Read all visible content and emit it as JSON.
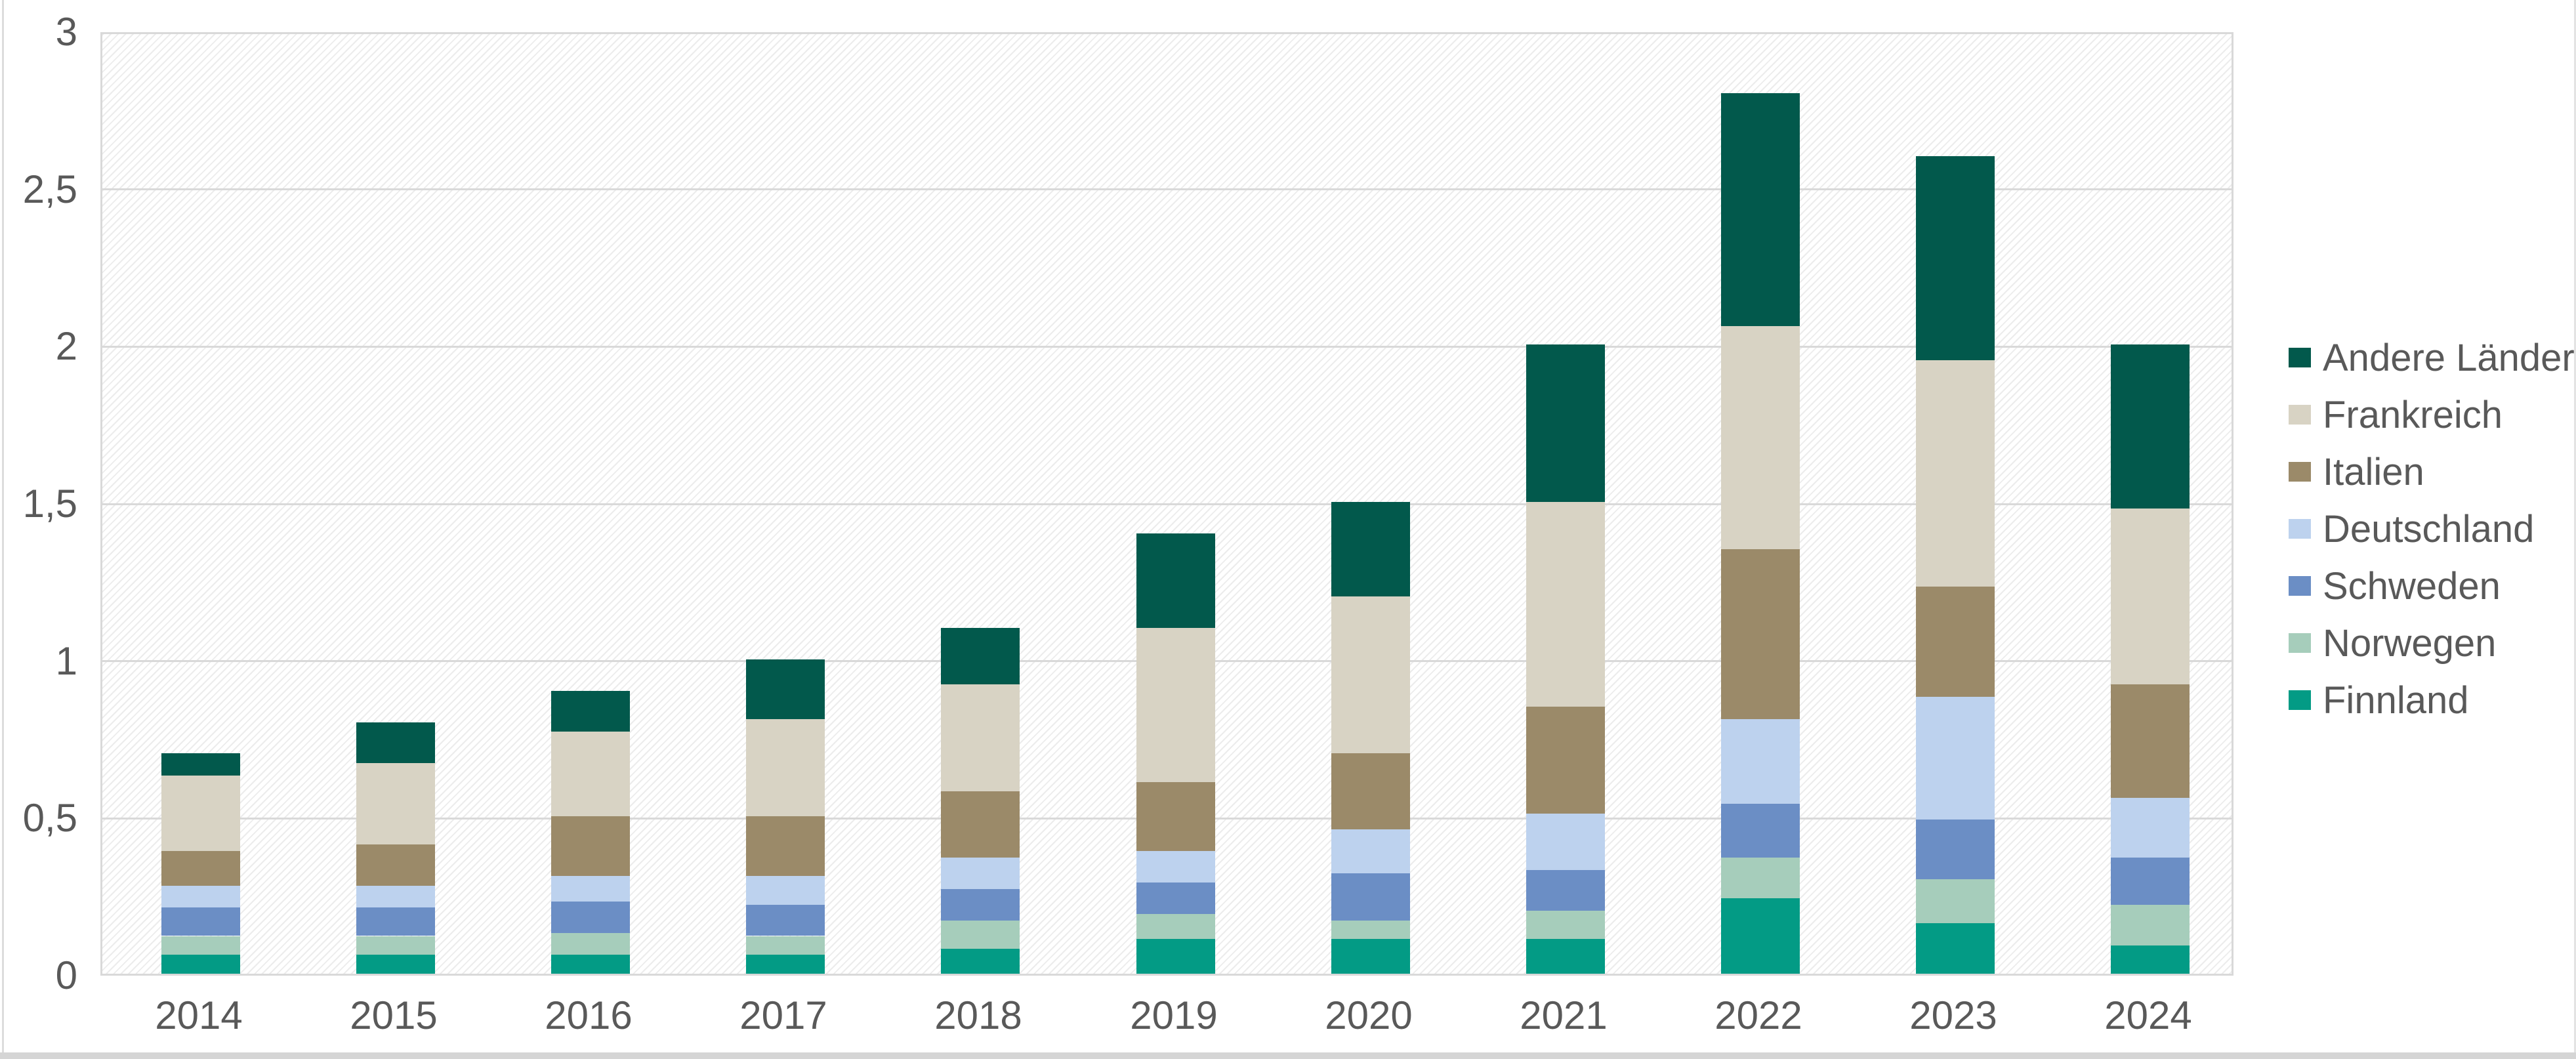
{
  "chart_data": {
    "type": "bar",
    "stacked": true,
    "title": "",
    "xlabel": "",
    "ylabel": "",
    "categories": [
      "2014",
      "2015",
      "2016",
      "2017",
      "2018",
      "2019",
      "2020",
      "2021",
      "2022",
      "2023",
      "2024"
    ],
    "series": [
      {
        "name": "Finnland",
        "color": "#039b85",
        "values": [
          0.06,
          0.06,
          0.06,
          0.06,
          0.08,
          0.11,
          0.11,
          0.11,
          0.24,
          0.16,
          0.09
        ]
      },
      {
        "name": "Norwegen",
        "color": "#a6cdbb",
        "values": [
          0.06,
          0.06,
          0.07,
          0.06,
          0.09,
          0.08,
          0.06,
          0.09,
          0.13,
          0.14,
          0.13
        ]
      },
      {
        "name": "Schweden",
        "color": "#6b8ec5",
        "values": [
          0.09,
          0.09,
          0.1,
          0.1,
          0.1,
          0.1,
          0.15,
          0.13,
          0.17,
          0.19,
          0.15
        ]
      },
      {
        "name": "Deutschland",
        "color": "#bdd2ee",
        "values": [
          0.07,
          0.07,
          0.08,
          0.09,
          0.1,
          0.1,
          0.14,
          0.18,
          0.27,
          0.39,
          0.19
        ]
      },
      {
        "name": "Italien",
        "color": "#9b8a69",
        "values": [
          0.11,
          0.13,
          0.19,
          0.19,
          0.21,
          0.22,
          0.24,
          0.34,
          0.54,
          0.35,
          0.36
        ]
      },
      {
        "name": "Frankreich",
        "color": "#d8d3c4",
        "values": [
          0.24,
          0.26,
          0.27,
          0.31,
          0.34,
          0.49,
          0.5,
          0.65,
          0.71,
          0.72,
          0.56
        ]
      },
      {
        "name": "Andere Länder",
        "color": "#02594c",
        "values": [
          0.07,
          0.13,
          0.13,
          0.19,
          0.18,
          0.3,
          0.3,
          0.5,
          0.74,
          0.65,
          0.52
        ]
      }
    ],
    "totals": [
      0.7,
      0.8,
      0.9,
      1.0,
      1.1,
      1.4,
      1.5,
      2.0,
      2.8,
      2.6,
      2.0
    ],
    "ylim": [
      0,
      3
    ],
    "y_ticks": [
      {
        "value": 3,
        "label": "3"
      },
      {
        "value": 2.5,
        "label": "2,5"
      },
      {
        "value": 2,
        "label": "2"
      },
      {
        "value": 1.5,
        "label": "1,5"
      },
      {
        "value": 1,
        "label": "1"
      },
      {
        "value": 0.5,
        "label": "0,5"
      },
      {
        "value": 0,
        "label": "0"
      }
    ],
    "grid": true,
    "plot_background_pattern": "light-diagonal-hatch",
    "legend_position": "right",
    "legend_order_top_to_bottom": [
      "Andere Länder",
      "Frankreich",
      "Italien",
      "Deutschland",
      "Schweden",
      "Norwegen",
      "Finnland"
    ]
  },
  "style": {
    "text_color": "#595959",
    "gridline_color": "#d9d9d9",
    "background_color": "#ffffff",
    "window_edge_bottom_color": "#d5d5d5",
    "window_edge_side_color": "#dcdcdc"
  }
}
